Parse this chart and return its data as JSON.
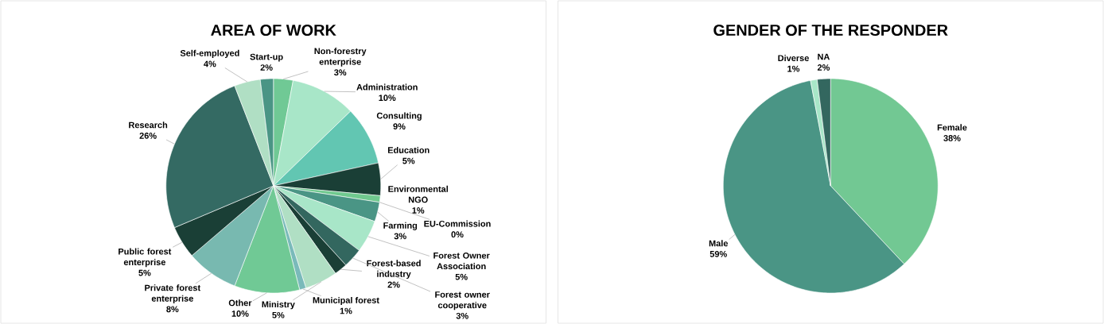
{
  "chart_data": [
    {
      "type": "pie",
      "title": "AREA OF WORK",
      "categories": [
        "Non-forestry enterprise",
        "Administration",
        "Consulting",
        "Education",
        "Environmental NGO",
        "EU-Commission",
        "Farming",
        "Forest Owner Association",
        "Forest owner cooperative",
        "Forest-based industry",
        "Ministry",
        "Municipal forest",
        "Other",
        "Private forest enterprise",
        "Public forest enterprise",
        "Research",
        "Self-employed",
        "Start-up"
      ],
      "values": [
        3,
        10,
        9,
        5,
        1,
        0,
        3,
        5,
        3,
        2,
        5,
        1,
        10,
        8,
        5,
        26,
        4,
        2
      ],
      "value_labels": [
        "3%",
        "10%",
        "9%",
        "5%",
        "1%",
        "0%",
        "3%",
        "5%",
        "3%",
        "2%",
        "5%",
        "1%",
        "10%",
        "8%",
        "5%",
        "26%",
        "4%",
        "2%"
      ],
      "colors": [
        "#70c995",
        "#a8e6c8",
        "#62c6b2",
        "#1a3f36",
        "#70c98f",
        "#7ab648",
        "#4a9585",
        "#a8e6c8",
        "#33675f",
        "#1a3f36",
        "#b0dfc4",
        "#7ababa",
        "#70c995",
        "#78b9b0",
        "#1a3f36",
        "#346a63",
        "#b0dfc4",
        "#4a9585"
      ]
    },
    {
      "type": "pie",
      "title": "GENDER OF THE RESPONDER",
      "categories": [
        "Female",
        "Male",
        "Diverse",
        "NA"
      ],
      "values": [
        38,
        59,
        1,
        2
      ],
      "value_labels": [
        "38%",
        "59%",
        "1%",
        "2%"
      ],
      "colors": [
        "#72c893",
        "#4a9585",
        "#a8e6c8",
        "#33675f"
      ]
    }
  ]
}
